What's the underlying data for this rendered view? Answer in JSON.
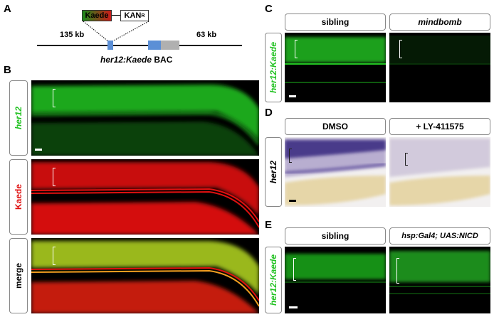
{
  "panels": {
    "A": {
      "letter": "A",
      "construct_box_kaede": "Kaede",
      "construct_box_kanr": "KAN",
      "construct_box_kanr_sup": "R",
      "left_distance": "135 kb",
      "right_distance": "63 kb",
      "caption_gene": "her12:Kaede",
      "caption_suffix": " BAC",
      "colors": {
        "kaede_gradient_start": "#1a8a1a",
        "kaede_gradient_end": "#cc1a1a",
        "exon": "#5b8fd6",
        "gene_body": "#b0b0b0"
      }
    },
    "B": {
      "letter": "B",
      "row_labels": [
        "her12",
        "Kaede",
        "merge"
      ],
      "colors": {
        "her12": "#22c222",
        "kaede": "#e01010"
      }
    },
    "C": {
      "letter": "C",
      "row_label": "her12:Kaede",
      "columns": [
        "sibling",
        "mindbomb"
      ]
    },
    "D": {
      "letter": "D",
      "row_label": "her12",
      "columns": [
        "DMSO",
        "+ LY-411575"
      ]
    },
    "E": {
      "letter": "E",
      "row_label": "her12:Kaede",
      "columns": [
        "sibling",
        "hsp:Gal4; UAS:NICD"
      ]
    }
  }
}
